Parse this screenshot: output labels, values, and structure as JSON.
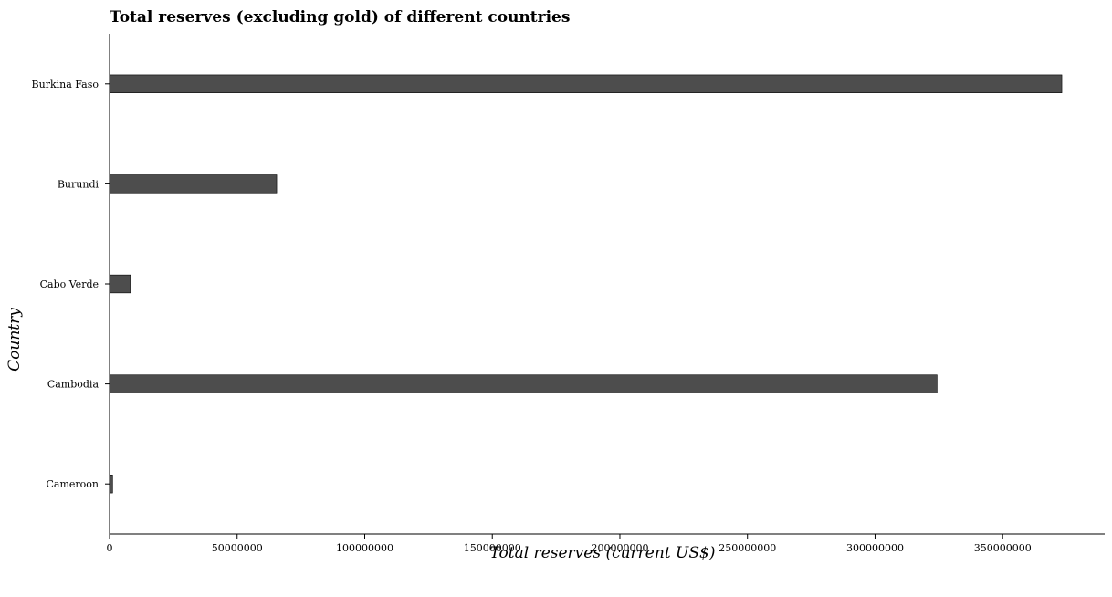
{
  "chart_data": {
    "type": "bar",
    "orientation": "horizontal",
    "title": "Total reserves (excluding gold) of different countries",
    "xlabel": "Total reserves (current US$)",
    "ylabel": "Country",
    "categories": [
      "Burkina Faso",
      "Burundi",
      "Cabo Verde",
      "Cambodia",
      "Cameroon"
    ],
    "values": [
      373200000,
      65500000,
      8200000,
      324300000,
      1200000
    ],
    "xlim": [
      0,
      390000000
    ],
    "xticks": [
      0,
      50000000,
      100000000,
      150000000,
      200000000,
      250000000,
      300000000,
      350000000
    ],
    "xtick_labels": [
      "0",
      "50000000",
      "100000000",
      "150000000",
      "200000000",
      "250000000",
      "300000000",
      "350000000"
    ],
    "grid": false,
    "legend": "none",
    "bar_color": "#4d4d4d"
  }
}
